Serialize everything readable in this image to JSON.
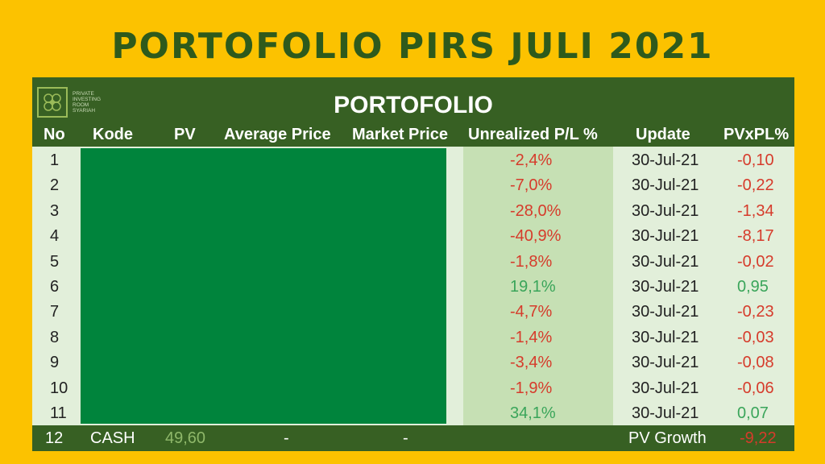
{
  "banner_title": "PORTOFOLIO PIRS JULI 2021",
  "logo": {
    "lines": [
      "PRIVATE",
      "INVESTING",
      "ROOM",
      "SYARIAH"
    ]
  },
  "table_title": "PORTOFOLIO",
  "columns": [
    "No",
    "Kode",
    "PV",
    "Average Price",
    "Market Price",
    "Unrealized P/L %",
    "Update",
    "PVxPL%"
  ],
  "rows": [
    {
      "no": "1",
      "pl": "-2,4%",
      "update": "30-Jul-21",
      "pvxpl": "-0,10",
      "sign": "neg"
    },
    {
      "no": "2",
      "pl": "-7,0%",
      "update": "30-Jul-21",
      "pvxpl": "-0,22",
      "sign": "neg"
    },
    {
      "no": "3",
      "pl": "-28,0%",
      "update": "30-Jul-21",
      "pvxpl": "-1,34",
      "sign": "neg"
    },
    {
      "no": "4",
      "pl": "-40,9%",
      "update": "30-Jul-21",
      "pvxpl": "-8,17",
      "sign": "neg"
    },
    {
      "no": "5",
      "pl": "-1,8%",
      "update": "30-Jul-21",
      "pvxpl": "-0,02",
      "sign": "neg"
    },
    {
      "no": "6",
      "pl": "19,1%",
      "update": "30-Jul-21",
      "pvxpl": "0,95",
      "sign": "pos"
    },
    {
      "no": "7",
      "pl": "-4,7%",
      "update": "30-Jul-21",
      "pvxpl": "-0,23",
      "sign": "neg"
    },
    {
      "no": "8",
      "pl": "-1,4%",
      "update": "30-Jul-21",
      "pvxpl": "-0,03",
      "sign": "neg"
    },
    {
      "no": "9",
      "pl": "-3,4%",
      "update": "30-Jul-21",
      "pvxpl": "-0,08",
      "sign": "neg"
    },
    {
      "no": "10",
      "pl": "-1,9%",
      "update": "30-Jul-21",
      "pvxpl": "-0,06",
      "sign": "neg"
    },
    {
      "no": "11",
      "pl": "34,1%",
      "update": "30-Jul-21",
      "pvxpl": "0,07",
      "sign": "pos"
    }
  ],
  "footer": {
    "no": "12",
    "kode": "CASH",
    "pv": "49,60",
    "avg": "-",
    "market": "-",
    "label": "PV Growth",
    "value": "-9,22"
  },
  "colors": {
    "background": "#fcc200",
    "header": "#376023",
    "redacted": "#00843c",
    "negative": "#d63b2b",
    "positive": "#3aa55a"
  }
}
